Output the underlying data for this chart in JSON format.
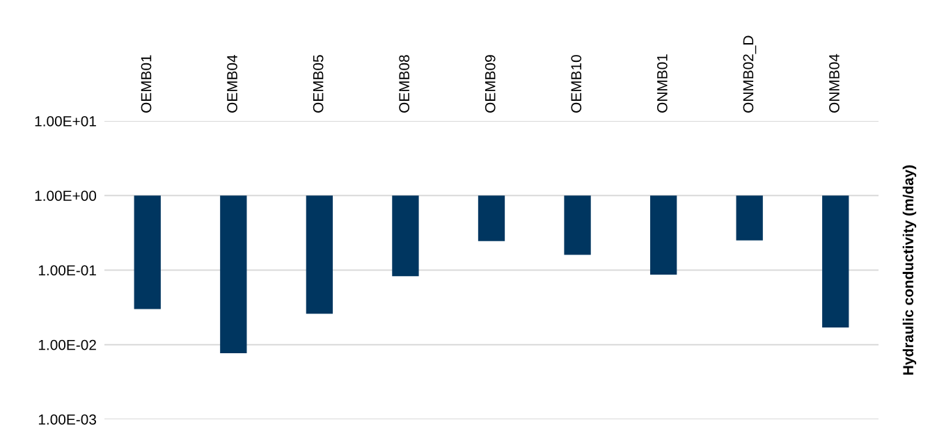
{
  "chart_data": {
    "type": "bar",
    "ylabel": "Hydraulic conductivity (m/day)",
    "categories": [
      "OEMB01",
      "OEMB04",
      "OEMB05",
      "OEMB08",
      "OEMB09",
      "OEMB10",
      "ONMB01",
      "ONMB02_D",
      "ONMB04"
    ],
    "values": [
      -0.97,
      -0.9923,
      -0.974,
      -0.917,
      -0.755,
      -0.84,
      -0.913,
      -0.75,
      -0.983
    ],
    "base": [
      1,
      1,
      1,
      1,
      1,
      1,
      1,
      1,
      1
    ],
    "color": "#003660",
    "log": true,
    "ylim": [
      0.001,
      10
    ],
    "yticks": [
      {
        "value": 0.001,
        "label": "1.00E-03"
      },
      {
        "value": 0.01,
        "label": "1.00E-02"
      },
      {
        "value": 0.1,
        "label": "1.00E-01"
      },
      {
        "value": 1,
        "label": "1.00E+00"
      },
      {
        "value": 10,
        "label": "1.00E+01"
      }
    ],
    "grid": "y",
    "legend": false
  }
}
